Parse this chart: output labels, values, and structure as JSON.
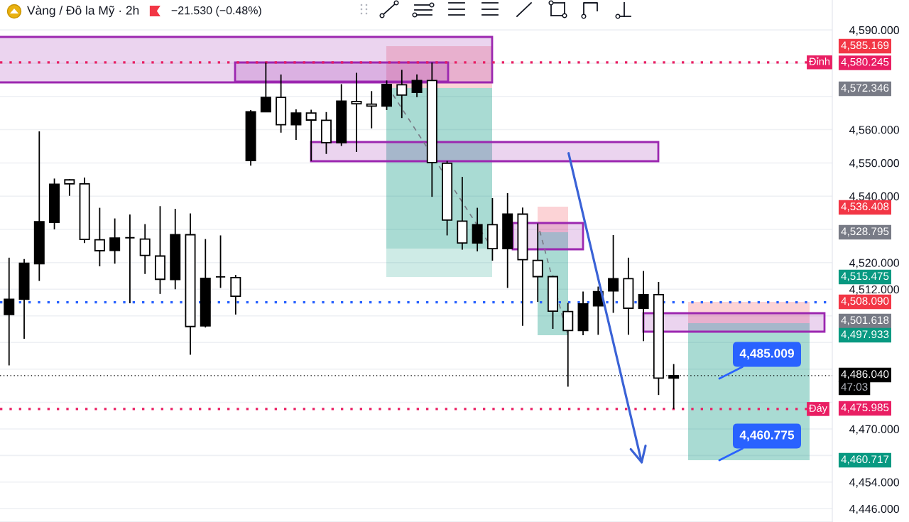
{
  "chart_data": {
    "type": "candlestick",
    "title": "Vàng / Đô la Mỹ · 2h",
    "subtitle": "−21.530 (−0.48%)",
    "categories": [
      null,
      null,
      null,
      null,
      null,
      null,
      null,
      null,
      null,
      null,
      null,
      null,
      null,
      null,
      null,
      null,
      null,
      null,
      null,
      null,
      null,
      null,
      null,
      null,
      null,
      null,
      null,
      null,
      null,
      null,
      null,
      null,
      null,
      null,
      null,
      null,
      null,
      null,
      null,
      null,
      null,
      null,
      null,
      null,
      null,
      null,
      null,
      null,
      null,
      null,
      null,
      null,
      null,
      null,
      null
    ],
    "ohlc": [
      [
        4504.4,
        4521.5,
        4489.1,
        4509.0
      ],
      [
        4509.0,
        4521.1,
        4497.1,
        4519.8
      ],
      [
        4519.7,
        4559.5,
        4514.5,
        4532.3
      ],
      [
        4532.1,
        4545.3,
        4530.0,
        4543.6
      ],
      [
        4544.9,
        4545.1,
        4540.1,
        4543.7
      ],
      [
        4543.7,
        4545.6,
        4525.9,
        4527.0
      ],
      [
        4526.9,
        4536.5,
        4518.9,
        4523.6
      ],
      [
        4523.7,
        4533.3,
        4519.7,
        4527.4
      ],
      [
        4527.5,
        4534.5,
        4507.8,
        4527.5
      ],
      [
        4527.1,
        4531.6,
        4516.6,
        4522.2
      ],
      [
        4522.0,
        4537.0,
        4510.6,
        4515.0
      ],
      [
        4514.9,
        4536.2,
        4512.0,
        4528.4
      ],
      [
        4528.4,
        4534.8,
        4492.3,
        4500.8
      ],
      [
        4501.0,
        4527.1,
        4500.5,
        4515.3
      ],
      [
        4515.7,
        4528.2,
        4512.4,
        4515.7
      ],
      [
        4515.5,
        4516.3,
        4504.4,
        4509.9
      ],
      [
        4550.7,
        4565.9,
        4549.2,
        4565.4
      ],
      [
        4565.4,
        4580.2,
        4565.3,
        4569.7
      ],
      [
        4569.7,
        4576.6,
        4559.1,
        4561.5
      ],
      [
        4561.5,
        4566.1,
        4556.9,
        4565.0
      ],
      [
        4565.0,
        4566.0,
        4550.6,
        4562.9
      ],
      [
        4562.8,
        4565.3,
        4552.7,
        4556.1
      ],
      [
        4556.1,
        4573.7,
        4555.1,
        4568.6
      ],
      [
        4568.5,
        4577.1,
        4553.3,
        4567.8
      ],
      [
        4567.7,
        4571.6,
        4560.4,
        4567.1
      ],
      [
        4567.1,
        4574.8,
        4565.9,
        4573.6
      ],
      [
        4573.5,
        4578.0,
        4563.5,
        4570.4
      ],
      [
        4571.2,
        4576.6,
        4569.8,
        4574.8
      ],
      [
        4574.8,
        4580.2,
        4539.8,
        4550.1
      ],
      [
        4549.9,
        4550.6,
        4528.2,
        4532.8
      ],
      [
        4532.5,
        4545.8,
        4523.9,
        4525.9
      ],
      [
        4525.9,
        4536.5,
        4523.4,
        4531.4
      ],
      [
        4531.4,
        4539.4,
        4520.6,
        4524.2
      ],
      [
        4524.2,
        4540.9,
        4512.4,
        4534.6
      ],
      [
        4534.6,
        4536.6,
        4501.0,
        4520.9
      ],
      [
        4520.7,
        4531.8,
        4508.2,
        4515.8
      ],
      [
        4515.8,
        4516.1,
        4500.1,
        4505.4
      ],
      [
        4505.3,
        4507.9,
        4482.7,
        4499.6
      ],
      [
        4499.6,
        4511.3,
        4498.2,
        4507.6
      ],
      [
        4507.0,
        4512.8,
        4498.3,
        4511.3
      ],
      [
        4511.5,
        4528.3,
        4504.9,
        4515.2
      ],
      [
        4515.2,
        4521.5,
        4498.3,
        4506.3
      ],
      [
        4506.3,
        4517.5,
        4496.4,
        4510.4
      ],
      [
        4510.4,
        4514.2,
        4480.2,
        4485.3
      ],
      [
        4485.3,
        4489.5,
        4476.0,
        4486.0
      ],
      null,
      null,
      null,
      null,
      null,
      null,
      null,
      null,
      null,
      null
    ],
    "ylim": [
      4442,
      4599
    ],
    "yticks": [
      {
        "value": 4446,
        "label": "4,446.000"
      },
      {
        "value": 4454,
        "label": "4,454.000"
      },
      {
        "value": 4462,
        "label": null
      },
      {
        "value": 4470,
        "label": "4,470.000"
      },
      {
        "value": 4478,
        "label": null
      },
      {
        "value": 4488,
        "label": null
      },
      {
        "value": 4496,
        "label": null
      },
      {
        "value": 4504,
        "label": null
      },
      {
        "value": 4512,
        "label": "4,512.000"
      },
      {
        "value": 4520,
        "label": "4,520.000"
      },
      {
        "value": 4530,
        "label": null
      },
      {
        "value": 4540,
        "label": "4,540.000"
      },
      {
        "value": 4550,
        "label": "4,550.000"
      },
      {
        "value": 4560,
        "label": "4,560.000"
      },
      {
        "value": 4570,
        "label": null
      },
      {
        "value": 4580,
        "label": null
      },
      {
        "value": 4590,
        "label": "4,590.000"
      }
    ],
    "grid": true,
    "tick_labels": "y",
    "ref_lines": [
      {
        "axis": "y",
        "value": 4580.245,
        "label": "Đỉnh",
        "color": "#e91e63",
        "line_style": "dotted"
      },
      {
        "axis": "y",
        "value": 4508.09,
        "color": "#2962ff",
        "line_style": "dotted"
      },
      {
        "axis": "y",
        "value": 4486.04,
        "color": "#000000",
        "line_style": "dotted"
      },
      {
        "axis": "y",
        "value": 4475.985,
        "label": "Đáy",
        "color": "#e91e63",
        "line_style": "dotted"
      }
    ],
    "annotations": [
      "4,585.169",
      "4,580.245",
      "4,572.346",
      "4,536.408",
      "4,528.795",
      "4,515.475",
      "4,508.090",
      "4,501.618",
      "4,497.933",
      "4,486.040",
      "47:03",
      "4,475.985",
      "4,460.717",
      "4,485.009",
      "4,460.775"
    ]
  }
}
